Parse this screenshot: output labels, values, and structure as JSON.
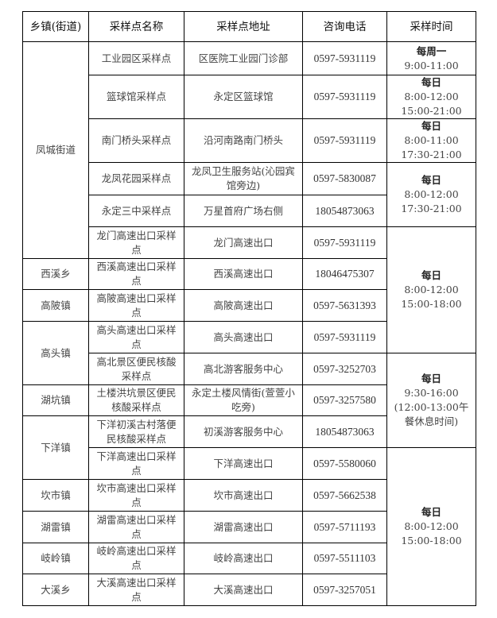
{
  "headers": [
    "乡镇(街道)",
    "采样点名称",
    "采样点地址",
    "咨询电话",
    "采样时间"
  ],
  "towns": [
    "凤城街道",
    "西溪乡",
    "高陂镇",
    "高头镇",
    "湖坑镇",
    "下洋镇",
    "坎市镇",
    "湖雷镇",
    "岐岭镇",
    "大溪乡"
  ],
  "rows": [
    {
      "name": "工业园区采样点",
      "address": "区医院工业园门诊部",
      "phone": "0597-5931119"
    },
    {
      "name": "篮球馆采样点",
      "address": "永定区篮球馆",
      "phone": "0597-5931119"
    },
    {
      "name": "南门桥头采样点",
      "address": "沿河南路南门桥头",
      "phone": "0597-5931119"
    },
    {
      "name": "龙凤花园采样点",
      "address": "龙凤卫生服务站(沁园宾馆旁边)",
      "phone": "0597-5830087"
    },
    {
      "name": "永定三中采样点",
      "address": "万星首府广场右侧",
      "phone": "18054873063"
    },
    {
      "name": "龙门高速出口采样点",
      "address": "龙门高速出口",
      "phone": "0597-5931119"
    },
    {
      "name": "西溪高速出口采样点",
      "address": "西溪高速出口",
      "phone": "18046475307"
    },
    {
      "name": "高陂高速出口采样点",
      "address": "高陂高速出口",
      "phone": "0597-5631393"
    },
    {
      "name": "高头高速出口采样点",
      "address": "高头高速出口",
      "phone": "0597-5931119"
    },
    {
      "name": "高北景区便民核酸采样点",
      "address": "高北游客服务中心",
      "phone": "0597-3252703"
    },
    {
      "name": "土楼洪坑景区便民核酸采样点",
      "address": "永定土楼风情街(萱萱小吃旁)",
      "phone": "0597-3257580"
    },
    {
      "name": "下洋初溪古村落便民核酸采样点",
      "address": "初溪游客服务中心",
      "phone": "18054873063"
    },
    {
      "name": "下洋高速出口采样点",
      "address": "下洋高速出口",
      "phone": "0597-5580060"
    },
    {
      "name": "坎市高速出口采样点",
      "address": "坎市高速出口",
      "phone": "0597-5662538"
    },
    {
      "name": "湖雷高速出口采样点",
      "address": "湖雷高速出口",
      "phone": "0597-5711193"
    },
    {
      "name": "岐岭高速出口采样点",
      "address": "岐岭高速出口",
      "phone": "0597-5511103"
    },
    {
      "name": "大溪高速出口采样点",
      "address": "大溪高速出口",
      "phone": "0597-3257051"
    }
  ],
  "times": [
    {
      "day": "每周一",
      "hours": "9:00-11:00"
    },
    {
      "day": "每日",
      "hours": "8:00-12:00\n15:00-21:00"
    },
    {
      "day": "每日",
      "hours": "8:00-11:00\n17:30-21:00"
    },
    {
      "day": "每日",
      "hours": "8:00-12:00\n17:30-21:00"
    },
    {
      "day": "每日",
      "hours": "8:00-12:00\n15:00-18:00"
    },
    {
      "day": "每日",
      "hours": "9:30-16:00\n(12:00-13:00午餐休息时间)"
    },
    {
      "day": "每日",
      "hours": "8:00-12:00\n15:00-18:00"
    }
  ]
}
